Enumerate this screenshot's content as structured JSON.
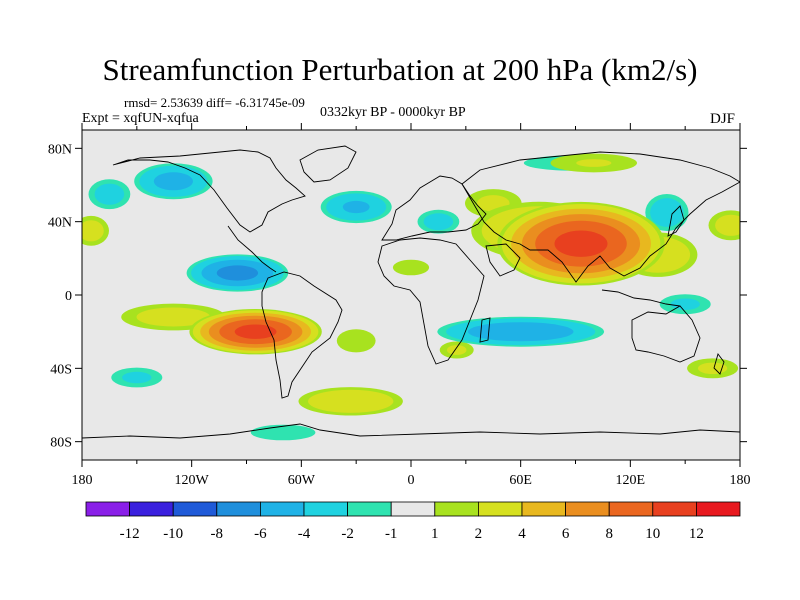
{
  "chart_data": {
    "type": "heatmap",
    "title": "Streamfunction Perturbation at 200 hPa (km2/s)",
    "stats_text": "rmsd= 2.53639 diff= -6.31745e-09",
    "experiment_label": "Expt = xqfUN-xqfua",
    "period_label": "0332kyr BP - 0000kyr BP",
    "season_label": "DJF",
    "x_axis": {
      "range": [
        -180,
        180
      ],
      "ticks": [
        {
          "value": -180,
          "label": "180"
        },
        {
          "value": -120,
          "label": "120W"
        },
        {
          "value": -60,
          "label": "60W"
        },
        {
          "value": 0,
          "label": "0"
        },
        {
          "value": 60,
          "label": "60E"
        },
        {
          "value": 120,
          "label": "120E"
        },
        {
          "value": 180,
          "label": "180"
        }
      ]
    },
    "y_axis": {
      "range": [
        -90,
        90
      ],
      "ticks": [
        {
          "value": 80,
          "label": "80N"
        },
        {
          "value": 40,
          "label": "40N"
        },
        {
          "value": 0,
          "label": "0"
        },
        {
          "value": -40,
          "label": "40S"
        },
        {
          "value": -80,
          "label": "80S"
        }
      ]
    },
    "colorbar": {
      "labels": [
        "-12",
        "-10",
        "-8",
        "-6",
        "-4",
        "-2",
        "-1",
        "1",
        "2",
        "4",
        "6",
        "8",
        "10",
        "12"
      ],
      "colors": [
        "#8a1fe8",
        "#3a20de",
        "#1f5ad8",
        "#1f8fdc",
        "#1fb2e6",
        "#1fd2e0",
        "#2fe3b0",
        "#e8e8e8",
        "#a8e21f",
        "#d6e01f",
        "#e8b81f",
        "#ea8e1f",
        "#ea661f",
        "#e8401f",
        "#e8191f"
      ]
    },
    "field_features": [
      {
        "lon": 93,
        "lat": 28,
        "value": 11,
        "shape": [
          48,
          24
        ]
      },
      {
        "lon": 70,
        "lat": 35,
        "value": 4.5,
        "shape": [
          42,
          18
        ]
      },
      {
        "lon": 135,
        "lat": 22,
        "value": 4,
        "shape": [
          25,
          14
        ]
      },
      {
        "lon": 45,
        "lat": 50,
        "value": 2.5,
        "shape": [
          20,
          10
        ]
      },
      {
        "lon": -85,
        "lat": -20,
        "value": 11,
        "shape": [
          38,
          13
        ]
      },
      {
        "lon": -130,
        "lat": -12,
        "value": 3,
        "shape": [
          35,
          9
        ]
      },
      {
        "lon": -30,
        "lat": -25,
        "value": 2,
        "shape": [
          15,
          9
        ]
      },
      {
        "lon": 25,
        "lat": -30,
        "value": 2.5,
        "shape": [
          12,
          6
        ]
      },
      {
        "lon": 0,
        "lat": 15,
        "value": 2,
        "shape": [
          14,
          6
        ]
      },
      {
        "lon": -33,
        "lat": -58,
        "value": 4,
        "shape": [
          33,
          9
        ]
      },
      {
        "lon": 165,
        "lat": -40,
        "value": 2.5,
        "shape": [
          18,
          7
        ]
      },
      {
        "lon": 100,
        "lat": 72,
        "value": 2.2,
        "shape": [
          32,
          7
        ]
      },
      {
        "lon": 175,
        "lat": 38,
        "value": 3,
        "shape": [
          15,
          10
        ]
      },
      {
        "lon": -175,
        "lat": 35,
        "value": 3,
        "shape": [
          12,
          10
        ]
      },
      {
        "lon": -95,
        "lat": 12,
        "value": -7,
        "shape": [
          30,
          11
        ]
      },
      {
        "lon": -130,
        "lat": 62,
        "value": -5,
        "shape": [
          24,
          11
        ]
      },
      {
        "lon": -30,
        "lat": 48,
        "value": -4.5,
        "shape": [
          22,
          10
        ]
      },
      {
        "lon": 60,
        "lat": -20,
        "value": -6,
        "shape": [
          50,
          9
        ]
      },
      {
        "lon": 15,
        "lat": 40,
        "value": -3,
        "shape": [
          14,
          8
        ]
      },
      {
        "lon": 140,
        "lat": 45,
        "value": -3.5,
        "shape": [
          14,
          12
        ]
      },
      {
        "lon": 90,
        "lat": 72,
        "value": -2,
        "shape": [
          40,
          6
        ]
      },
      {
        "lon": -165,
        "lat": 55,
        "value": -3,
        "shape": [
          14,
          10
        ]
      },
      {
        "lon": 150,
        "lat": -5,
        "value": -2.5,
        "shape": [
          18,
          7
        ]
      },
      {
        "lon": -150,
        "lat": -45,
        "value": -2.5,
        "shape": [
          18,
          7
        ]
      },
      {
        "lon": -70,
        "lat": -75,
        "value": -2,
        "shape": [
          25,
          6
        ]
      }
    ]
  }
}
